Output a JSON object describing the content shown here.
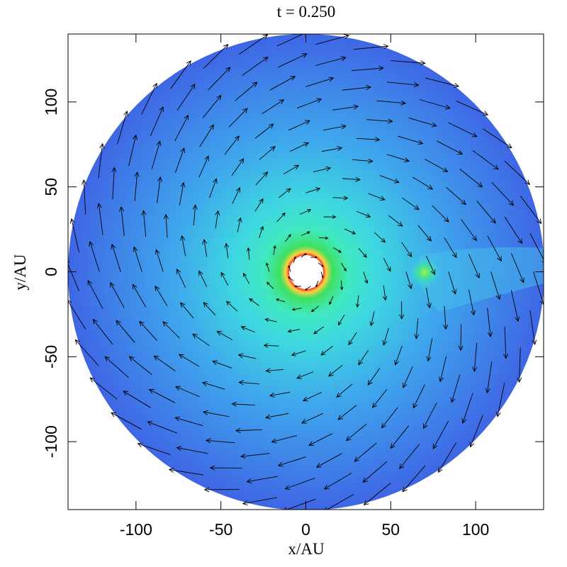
{
  "chart_data": {
    "type": "image",
    "title": "t = 0.250",
    "xlabel": "x/AU",
    "ylabel": "y/AU",
    "xlim": [
      -140,
      140
    ],
    "ylim": [
      -140,
      140
    ],
    "xticks": [
      -100,
      -50,
      0,
      50,
      100
    ],
    "yticks": [
      -100,
      -50,
      0,
      50,
      100
    ]
  }
}
